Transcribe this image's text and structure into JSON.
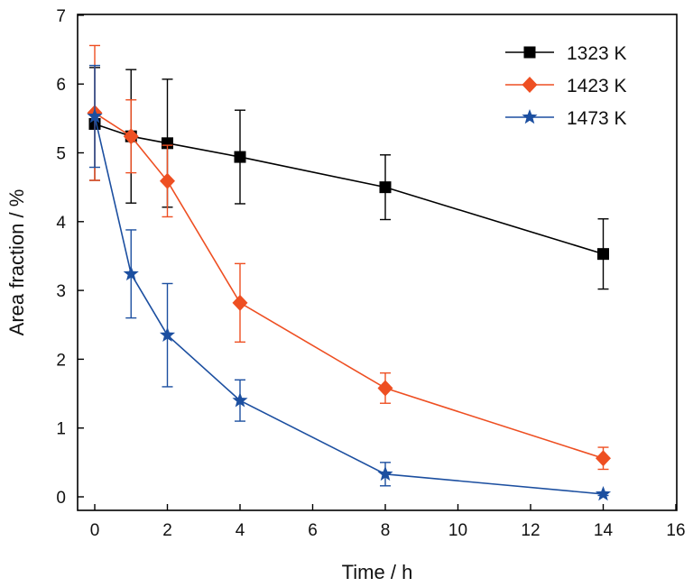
{
  "chart_data": {
    "type": "line",
    "title": "",
    "xlabel": "Time / h",
    "ylabel": "Area fraction / %",
    "xlim": [
      0,
      16
    ],
    "ylim": [
      0,
      7
    ],
    "xticks": [
      0,
      2,
      4,
      6,
      8,
      10,
      12,
      14,
      16
    ],
    "yticks": [
      0,
      1,
      2,
      3,
      4,
      5,
      6,
      7
    ],
    "grid": false,
    "legend_position": "top-right",
    "series": [
      {
        "name": "1323 K",
        "color": "#000000",
        "marker": "square",
        "x": [
          0,
          1,
          2,
          4,
          8,
          14
        ],
        "y": [
          5.42,
          5.24,
          5.14,
          4.94,
          4.5,
          3.53
        ],
        "err": [
          0.82,
          0.97,
          0.93,
          0.68,
          0.47,
          0.51
        ]
      },
      {
        "name": "1423 K",
        "color": "#ee4f22",
        "marker": "diamond",
        "x": [
          0,
          1,
          2,
          4,
          8,
          14
        ],
        "y": [
          5.58,
          5.24,
          4.59,
          2.82,
          1.58,
          0.56
        ],
        "err": [
          0.98,
          0.53,
          0.52,
          0.57,
          0.22,
          0.16
        ]
      },
      {
        "name": "1473 K",
        "color": "#1c4fa0",
        "marker": "star",
        "x": [
          0,
          1,
          2,
          4,
          8,
          14
        ],
        "y": [
          5.53,
          3.24,
          2.35,
          1.4,
          0.33,
          0.04
        ],
        "err": [
          0.74,
          0.64,
          0.75,
          0.3,
          0.17,
          0.02
        ]
      }
    ]
  }
}
